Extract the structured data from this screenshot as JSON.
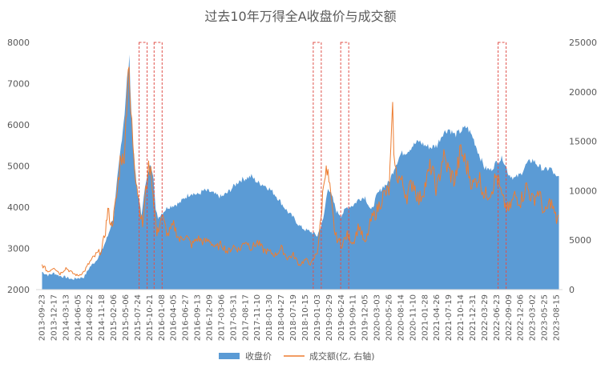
{
  "chart_data": {
    "type": "area",
    "title": "过去10年万得全A收盘价与成交额",
    "xlabel": "",
    "ylabel": "",
    "y_left": {
      "ticks": [
        2000,
        3000,
        4000,
        5000,
        6000,
        7000,
        8000
      ],
      "range": [
        2000,
        8000
      ]
    },
    "y_right": {
      "ticks": [
        0,
        5000,
        10000,
        15000,
        20000,
        25000
      ],
      "range": [
        0,
        25000
      ]
    },
    "x_ticks": [
      "2013-09-23",
      "2013-12-17",
      "2014-03-13",
      "2014-06-05",
      "2014-08-22",
      "2014-11-18",
      "2015-02-06",
      "2015-05-06",
      "2015-07-24",
      "2015-10-21",
      "2016-01-08",
      "2016-04-05",
      "2016-06-27",
      "2016-09-13",
      "2016-12-09",
      "2017-03-06",
      "2017-05-31",
      "2017-08-17",
      "2017-11-10",
      "2018-01-30",
      "2018-04-27",
      "2018-07-19",
      "2018-10-15",
      "2019-01-03",
      "2019-03-29",
      "2019-06-24",
      "2019-09-11",
      "2019-12-05",
      "2020-03-03",
      "2020-05-26",
      "2020-08-14",
      "2020-11-10",
      "2021-01-28",
      "2021-04-26",
      "2021-07-19",
      "2021-10-14",
      "2021-12-31",
      "2022-03-29",
      "2022-06-23",
      "2022-09-09",
      "2022-12-06",
      "2023-03-02",
      "2023-05-25",
      "2023-08-15"
    ],
    "series": [
      {
        "name": "收盘价",
        "axis": "left",
        "color": "#5B9BD5",
        "style": "area",
        "points": [
          [
            0,
            2430
          ],
          [
            0.5,
            2350
          ],
          [
            1,
            2400
          ],
          [
            1.5,
            2330
          ],
          [
            2,
            2300
          ],
          [
            2.5,
            2250
          ],
          [
            3,
            2280
          ],
          [
            3.5,
            2300
          ],
          [
            4,
            2550
          ],
          [
            4.5,
            2700
          ],
          [
            5,
            2950
          ],
          [
            5.5,
            3300
          ],
          [
            6,
            3800
          ],
          [
            6.3,
            4700
          ],
          [
            6.6,
            5500
          ],
          [
            6.9,
            6300
          ],
          [
            7.1,
            7100
          ],
          [
            7.3,
            7600
          ],
          [
            7.5,
            6000
          ],
          [
            7.7,
            5200
          ],
          [
            7.9,
            4500
          ],
          [
            8.1,
            4200
          ],
          [
            8.3,
            3800
          ],
          [
            8.5,
            4300
          ],
          [
            8.7,
            4600
          ],
          [
            8.9,
            4900
          ],
          [
            9.1,
            5050
          ],
          [
            9.3,
            4800
          ],
          [
            9.5,
            3900
          ],
          [
            9.7,
            3750
          ],
          [
            10,
            3850
          ],
          [
            10.5,
            4000
          ],
          [
            11,
            4050
          ],
          [
            11.5,
            4100
          ],
          [
            12,
            4250
          ],
          [
            12.5,
            4350
          ],
          [
            13,
            4300
          ],
          [
            13.5,
            4400
          ],
          [
            14,
            4380
          ],
          [
            14.5,
            4300
          ],
          [
            15,
            4250
          ],
          [
            15.5,
            4350
          ],
          [
            16,
            4500
          ],
          [
            16.5,
            4650
          ],
          [
            17,
            4700
          ],
          [
            17.5,
            4750
          ],
          [
            18,
            4600
          ],
          [
            18.5,
            4550
          ],
          [
            19,
            4450
          ],
          [
            19.5,
            4300
          ],
          [
            20,
            4100
          ],
          [
            20.5,
            3900
          ],
          [
            21,
            3750
          ],
          [
            21.5,
            3550
          ],
          [
            22,
            3450
          ],
          [
            22.5,
            3400
          ],
          [
            23,
            3300
          ],
          [
            23.5,
            3700
          ],
          [
            23.9,
            4500
          ],
          [
            24.3,
            4200
          ],
          [
            24.6,
            3900
          ],
          [
            25,
            3800
          ],
          [
            25.5,
            4000
          ],
          [
            26,
            4050
          ],
          [
            26.5,
            4200
          ],
          [
            27,
            4250
          ],
          [
            27.5,
            3900
          ],
          [
            28,
            4300
          ],
          [
            28.5,
            4500
          ],
          [
            29,
            4600
          ],
          [
            29.5,
            5000
          ],
          [
            30,
            5300
          ],
          [
            30.5,
            5350
          ],
          [
            31,
            5500
          ],
          [
            31.5,
            5600
          ],
          [
            32,
            5500
          ],
          [
            32.5,
            5450
          ],
          [
            33,
            5500
          ],
          [
            33.5,
            5800
          ],
          [
            34,
            5900
          ],
          [
            34.5,
            5750
          ],
          [
            35,
            5850
          ],
          [
            35.5,
            5950
          ],
          [
            36,
            5700
          ],
          [
            36.5,
            5300
          ],
          [
            37,
            4950
          ],
          [
            37.5,
            4900
          ],
          [
            38,
            5100
          ],
          [
            38.5,
            5200
          ],
          [
            39,
            4800
          ],
          [
            39.5,
            4700
          ],
          [
            40,
            4800
          ],
          [
            40.5,
            5050
          ],
          [
            41,
            5150
          ],
          [
            41.5,
            5000
          ],
          [
            42,
            4900
          ],
          [
            42.5,
            4950
          ],
          [
            43,
            4700
          ],
          [
            43.2,
            4750
          ]
        ]
      },
      {
        "name": "成交额(亿, 右轴)",
        "axis": "right",
        "color": "#ED7D31",
        "style": "line",
        "points": [
          [
            0,
            2500
          ],
          [
            0.5,
            1800
          ],
          [
            1,
            2300
          ],
          [
            1.5,
            1600
          ],
          [
            2,
            2200
          ],
          [
            2.5,
            1700
          ],
          [
            3,
            1400
          ],
          [
            3.5,
            1800
          ],
          [
            4,
            2800
          ],
          [
            4.5,
            3500
          ],
          [
            5,
            4000
          ],
          [
            5.3,
            6000
          ],
          [
            5.5,
            8000
          ],
          [
            5.8,
            6500
          ],
          [
            6,
            7500
          ],
          [
            6.3,
            10000
          ],
          [
            6.6,
            14000
          ],
          [
            6.8,
            12500
          ],
          [
            7,
            17000
          ],
          [
            7.2,
            22500
          ],
          [
            7.4,
            18000
          ],
          [
            7.6,
            15000
          ],
          [
            7.8,
            12000
          ],
          [
            8,
            10000
          ],
          [
            8.2,
            8000
          ],
          [
            8.4,
            6500
          ],
          [
            8.6,
            9000
          ],
          [
            8.8,
            11500
          ],
          [
            9,
            12500
          ],
          [
            9.2,
            11000
          ],
          [
            9.4,
            8000
          ],
          [
            9.6,
            5500
          ],
          [
            9.8,
            6500
          ],
          [
            10,
            7500
          ],
          [
            10.5,
            5500
          ],
          [
            11,
            6500
          ],
          [
            11.5,
            5000
          ],
          [
            12,
            5500
          ],
          [
            12.5,
            4500
          ],
          [
            13,
            5200
          ],
          [
            13.5,
            4800
          ],
          [
            14,
            5000
          ],
          [
            14.5,
            4200
          ],
          [
            15,
            4600
          ],
          [
            15.5,
            3800
          ],
          [
            16,
            4400
          ],
          [
            16.5,
            4000
          ],
          [
            17,
            5000
          ],
          [
            17.5,
            4200
          ],
          [
            18,
            4800
          ],
          [
            18.5,
            4000
          ],
          [
            19,
            3800
          ],
          [
            19.5,
            3500
          ],
          [
            20,
            4200
          ],
          [
            20.5,
            3200
          ],
          [
            21,
            3500
          ],
          [
            21.5,
            2500
          ],
          [
            22,
            3000
          ],
          [
            22.5,
            2600
          ],
          [
            23,
            3800
          ],
          [
            23.3,
            7000
          ],
          [
            23.6,
            12000
          ],
          [
            23.9,
            11500
          ],
          [
            24.2,
            8500
          ],
          [
            24.5,
            5500
          ],
          [
            25,
            4500
          ],
          [
            25.5,
            5500
          ],
          [
            26,
            4800
          ],
          [
            26.5,
            6500
          ],
          [
            27,
            4500
          ],
          [
            27.5,
            7000
          ],
          [
            28,
            8000
          ],
          [
            28.5,
            9500
          ],
          [
            29,
            10000
          ],
          [
            29.3,
            17500
          ],
          [
            29.5,
            12000
          ],
          [
            30,
            11000
          ],
          [
            30.5,
            9500
          ],
          [
            31,
            11000
          ],
          [
            31.5,
            9000
          ],
          [
            32,
            10500
          ],
          [
            32.5,
            12500
          ],
          [
            33,
            10000
          ],
          [
            33.5,
            13500
          ],
          [
            34,
            12000
          ],
          [
            34.5,
            11000
          ],
          [
            35,
            14000
          ],
          [
            35.5,
            12500
          ],
          [
            36,
            10500
          ],
          [
            36.5,
            11500
          ],
          [
            37,
            9500
          ],
          [
            37.5,
            10000
          ],
          [
            38,
            11500
          ],
          [
            38.5,
            9000
          ],
          [
            39,
            8000
          ],
          [
            39.5,
            9500
          ],
          [
            40,
            9000
          ],
          [
            40.5,
            10500
          ],
          [
            41,
            9000
          ],
          [
            41.5,
            10000
          ],
          [
            42,
            7500
          ],
          [
            42.5,
            9000
          ],
          [
            43,
            7000
          ],
          [
            43.2,
            7500
          ]
        ]
      }
    ],
    "highlight_boxes": [
      8.45,
      9.7,
      23.0,
      25.3,
      38.45
    ],
    "legend": {
      "position": "bottom",
      "items": [
        "收盘价",
        "成交额(亿, 右轴)"
      ]
    },
    "grid": false
  }
}
